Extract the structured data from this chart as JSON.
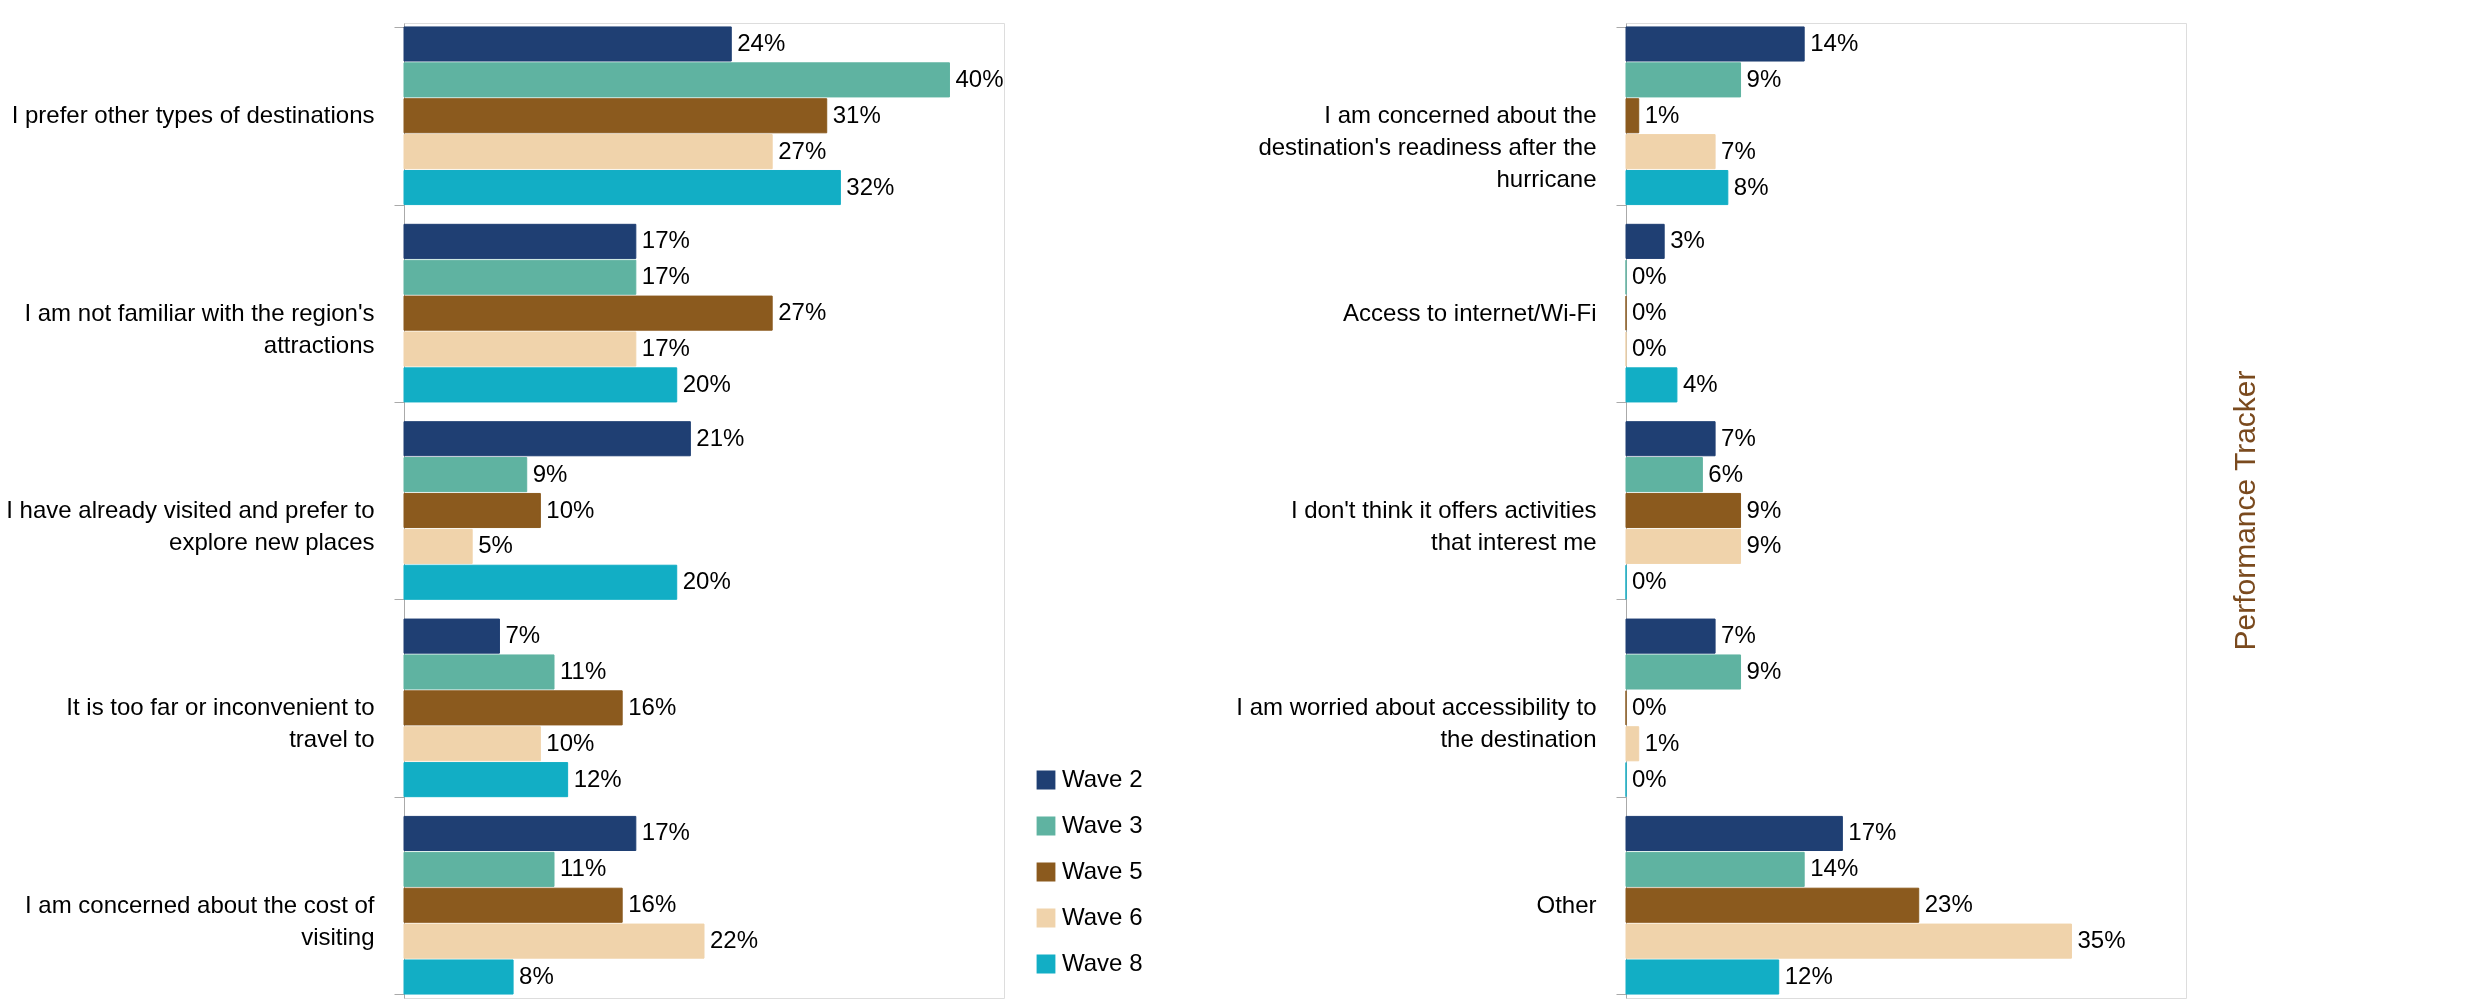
{
  "chart_data": [
    {
      "type": "bar",
      "orientation": "horizontal",
      "categories": [
        "I prefer other types of destinations",
        "I am not familiar with the region's attractions",
        "I have already visited and prefer to explore new places",
        "It is too far or inconvenient to travel to",
        "I am concerned about the cost of visiting"
      ],
      "xlim": [
        0,
        44
      ],
      "tick_labels": "y",
      "legend": "bottom right",
      "series": [
        {
          "name": "Wave 2",
          "color": "#1f3f73",
          "values": [
            24,
            17,
            21,
            7,
            17
          ],
          "value_labels": [
            "24%",
            "17%",
            "21%",
            "7%",
            "17%"
          ]
        },
        {
          "name": "Wave 3",
          "color": "#5fb3a1",
          "values": [
            40,
            17,
            9,
            11,
            11
          ],
          "value_labels": [
            "40%",
            "17%",
            "9%",
            "11%",
            "11%"
          ]
        },
        {
          "name": "Wave 5",
          "color": "#8b5a1e",
          "values": [
            31,
            27,
            10,
            16,
            16
          ],
          "value_labels": [
            "31%",
            "27%",
            "10%",
            "16%",
            "16%"
          ]
        },
        {
          "name": "Wave 6",
          "color": "#f0d3ab",
          "values": [
            27,
            17,
            5,
            10,
            22
          ],
          "value_labels": [
            "27%",
            "17%",
            "5%",
            "10%",
            "22%"
          ]
        },
        {
          "name": "Wave 8",
          "color": "#12aec5",
          "values": [
            32,
            20,
            20,
            12,
            8
          ],
          "value_labels": [
            "32%",
            "20%",
            "20%",
            "12%",
            "8%"
          ]
        }
      ]
    },
    {
      "type": "bar",
      "orientation": "horizontal",
      "categories": [
        "I am concerned about the destination's readiness after the hurricane",
        "Access to internet/Wi-Fi",
        "I don't think it offers activities that interest me",
        "I am worried about accessibility to the destination",
        "Other"
      ],
      "xlim": [
        0,
        44
      ],
      "tick_labels": "y",
      "legend": false,
      "annotations": [
        "Performance Tracker"
      ],
      "series": [
        {
          "color": "#1f3f73",
          "values": [
            14,
            3,
            7,
            7,
            17
          ],
          "value_labels": [
            "14%",
            "3%",
            "7%",
            "7%",
            "17%"
          ]
        },
        {
          "color": "#5fb3a1",
          "values": [
            9,
            0,
            6,
            9,
            14
          ],
          "value_labels": [
            "9%",
            "0%",
            "6%",
            "9%",
            "14%"
          ]
        },
        {
          "color": "#8b5a1e",
          "values": [
            1,
            0,
            9,
            0,
            23
          ],
          "value_labels": [
            "1%",
            "0%",
            "9%",
            "0%",
            "23%"
          ]
        },
        {
          "color": "#f0d3ab",
          "values": [
            7,
            0,
            9,
            1,
            35
          ],
          "value_labels": [
            "7%",
            "0%",
            "9%",
            "1%",
            "35%"
          ]
        },
        {
          "color": "#12aec5",
          "values": [
            8,
            4,
            0,
            0,
            12
          ],
          "value_labels": [
            "8%",
            "4%",
            "0%",
            "0%",
            "12%"
          ]
        }
      ]
    }
  ]
}
